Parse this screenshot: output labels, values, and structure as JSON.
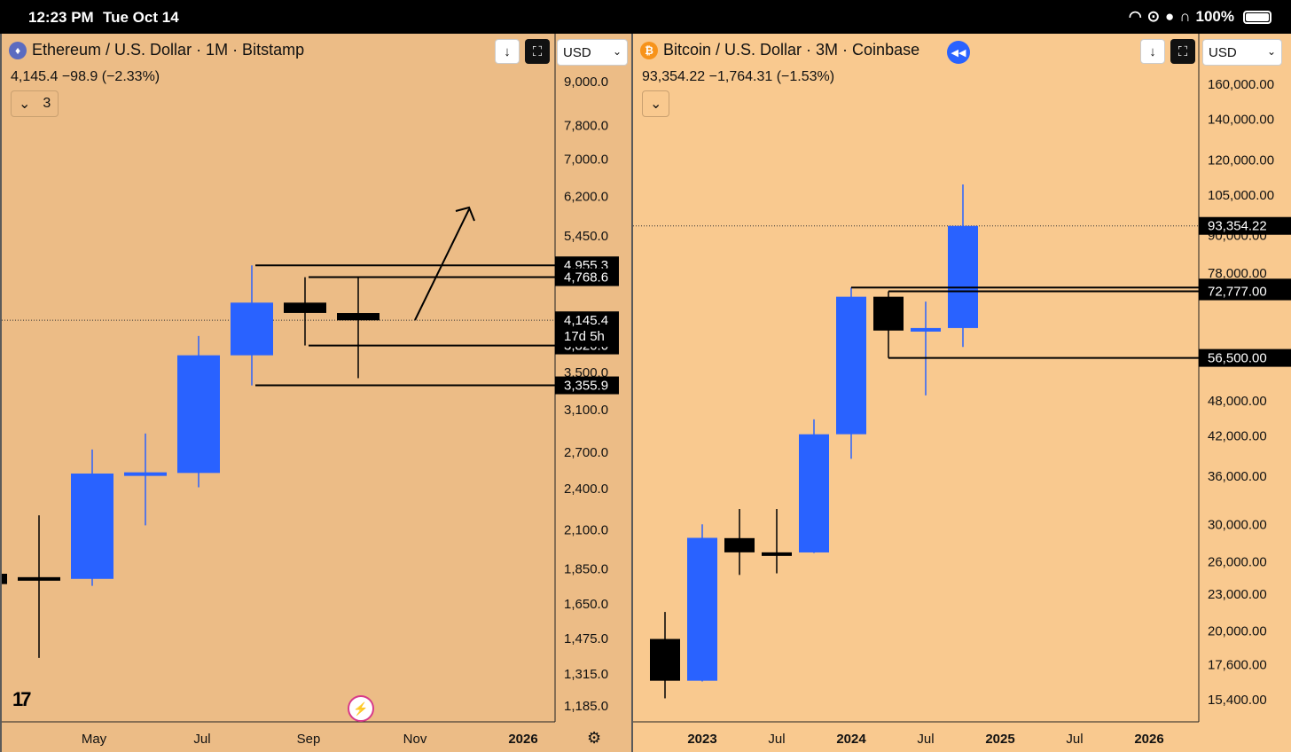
{
  "status_bar": {
    "time": "12:23 PM",
    "date": "Tue Oct 14",
    "battery": "100%"
  },
  "colors": {
    "up": "#2962ff",
    "down": "#000000",
    "eth_bg": "#ecbc86",
    "btc_bg": "#f9c98f"
  },
  "eth": {
    "title": "Ethereum / U.S. Dollar · 1M · Bitstamp",
    "quote": "4,145.4  −98.9 (−2.33%)",
    "toggle_count": "3",
    "currency": "USD",
    "watermark": "17",
    "countdown": "17d 5h"
  },
  "btc": {
    "title": "Bitcoin / U.S. Dollar · 3M · Coinbase",
    "quote": "93,354.22  −1,764.31 (−1.53%)",
    "currency": "USD"
  },
  "chart_data": [
    {
      "type": "candlestick",
      "title": "Ethereum / U.S. Dollar · 1M · Bitstamp",
      "y_scale": "log",
      "y_ticks": [
        9000,
        7800,
        7000,
        6200,
        5450,
        3500,
        3100,
        2700,
        2400,
        2100,
        1850,
        1650,
        1475,
        1315,
        1185
      ],
      "x_labels": [
        {
          "label": "May",
          "bold": false
        },
        {
          "label": "Jul",
          "bold": false
        },
        {
          "label": "Sep",
          "bold": false
        },
        {
          "label": "Nov",
          "bold": false
        },
        {
          "label": "2026",
          "bold": true
        }
      ],
      "candles": [
        {
          "o": 1820,
          "h": 1870,
          "c": 1760,
          "l": 1740
        },
        {
          "o": 1800,
          "h": 2200,
          "c": 1795,
          "l": 1385
        },
        {
          "o": 1790,
          "h": 2725,
          "c": 2520,
          "l": 1750
        },
        {
          "o": 2525,
          "h": 2870,
          "c": 2530,
          "l": 2130
        },
        {
          "o": 2525,
          "h": 3940,
          "c": 3700,
          "l": 2410
        },
        {
          "o": 3700,
          "h": 4955,
          "c": 4390,
          "l": 3355
        },
        {
          "o": 4390,
          "h": 4768,
          "c": 4245,
          "l": 3820
        },
        {
          "o": 4244,
          "h": 4768,
          "c": 4145,
          "l": 3435
        }
      ],
      "levels": [
        {
          "value": 4955.3,
          "label": "4,955.3"
        },
        {
          "value": 4768.6,
          "label": "4,768.6"
        },
        {
          "value": 3820.0,
          "label": "3,820.0"
        },
        {
          "value": 3355.9,
          "label": "3,355.9"
        }
      ],
      "last_price": {
        "value": 4145.4,
        "label": "4,145.4"
      }
    },
    {
      "type": "candlestick",
      "title": "Bitcoin / U.S. Dollar · 3M · Coinbase",
      "y_scale": "log",
      "y_ticks": [
        160000,
        140000,
        120000,
        105000,
        90000,
        78000,
        48000,
        42000,
        36000,
        30000,
        26000,
        23000,
        20000,
        17600,
        15400
      ],
      "x_labels": [
        {
          "label": "2023",
          "bold": true
        },
        {
          "label": "Jul",
          "bold": false
        },
        {
          "label": "2024",
          "bold": true
        },
        {
          "label": "Jul",
          "bold": false
        },
        {
          "label": "2025",
          "bold": true
        },
        {
          "label": "Jul",
          "bold": false
        },
        {
          "label": "2026",
          "bold": true
        }
      ],
      "candles": [
        {
          "o": 19400,
          "h": 21500,
          "c": 16550,
          "l": 15480
        },
        {
          "o": 16550,
          "h": 30000,
          "c": 28500,
          "l": 16500
        },
        {
          "o": 28470,
          "h": 31800,
          "c": 26970,
          "l": 24750
        },
        {
          "o": 26970,
          "h": 31800,
          "c": 26960,
          "l": 24900
        },
        {
          "o": 26960,
          "h": 44730,
          "c": 42260,
          "l": 26900
        },
        {
          "o": 42270,
          "h": 73835,
          "c": 71300,
          "l": 38500
        },
        {
          "o": 71300,
          "h": 72777,
          "c": 62700,
          "l": 56500
        },
        {
          "o": 62700,
          "h": 70000,
          "c": 63300,
          "l": 49000
        },
        {
          "o": 63300,
          "h": 109300,
          "c": 93354,
          "l": 58900
        }
      ],
      "levels": [
        {
          "value": 73835.57,
          "label": "73,835.57"
        },
        {
          "value": 72777.0,
          "label": "72,777.00"
        },
        {
          "value": 56500.0,
          "label": "56,500.00"
        }
      ],
      "last_price": {
        "value": 93354.22,
        "label": "93,354.22"
      }
    }
  ]
}
